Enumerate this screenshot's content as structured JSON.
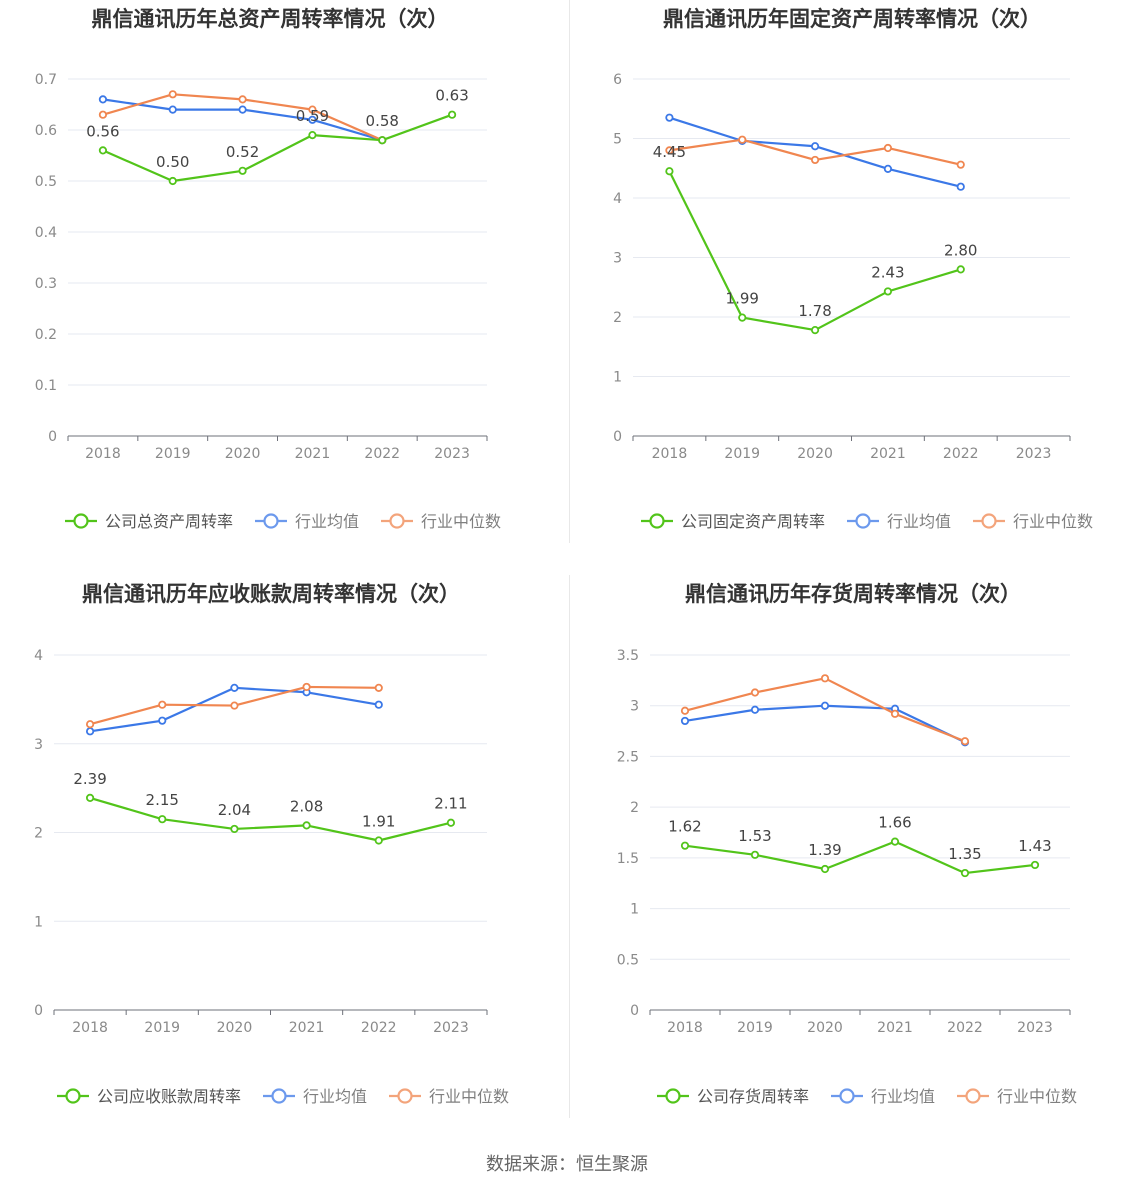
{
  "source_note": "数据来源：恒生聚源",
  "colors": {
    "company": "#52c41a",
    "avg": "#3b78e7",
    "median": "#f08650"
  },
  "chart_data": [
    {
      "type": "line",
      "title": "鼎信通讯历年总资产周转率情况（次）",
      "categories": [
        "2018",
        "2019",
        "2020",
        "2021",
        "2022",
        "2023"
      ],
      "ylim": [
        0,
        0.7
      ],
      "yticks": [
        0,
        0.1,
        0.2,
        0.3,
        0.4,
        0.5,
        0.6,
        0.7
      ],
      "ytick_labels": [
        "0",
        "0.1",
        "0.2",
        "0.3",
        "0.4",
        "0.5",
        "0.6",
        "0.7"
      ],
      "grid": true,
      "legend_position": "bottom",
      "series": [
        {
          "name": "公司总资产周转率",
          "role": "company",
          "values": [
            0.56,
            0.5,
            0.52,
            0.59,
            0.58,
            0.63
          ],
          "labels": [
            "0.56",
            "0.50",
            "0.52",
            "0.59",
            "0.58",
            "0.63"
          ]
        },
        {
          "name": "行业均值",
          "role": "avg",
          "values": [
            0.66,
            0.64,
            0.64,
            0.62,
            0.58,
            null
          ]
        },
        {
          "name": "行业中位数",
          "role": "median",
          "values": [
            0.63,
            0.67,
            0.66,
            0.64,
            0.58,
            null
          ]
        }
      ]
    },
    {
      "type": "line",
      "title": "鼎信通讯历年固定资产周转率情况（次）",
      "categories": [
        "2018",
        "2019",
        "2020",
        "2021",
        "2022",
        "2023"
      ],
      "ylim": [
        0,
        6
      ],
      "yticks": [
        0,
        1,
        2,
        3,
        4,
        5,
        6
      ],
      "ytick_labels": [
        "0",
        "1",
        "2",
        "3",
        "4",
        "5",
        "6"
      ],
      "grid": true,
      "legend_position": "bottom",
      "series": [
        {
          "name": "公司固定资产周转率",
          "role": "company",
          "values": [
            4.45,
            1.99,
            1.78,
            2.43,
            2.8,
            null
          ],
          "labels": [
            "4.45",
            "1.99",
            "1.78",
            "2.43",
            "2.80",
            ""
          ]
        },
        {
          "name": "行业均值",
          "role": "avg",
          "values": [
            5.35,
            4.96,
            4.87,
            4.49,
            4.19,
            null
          ]
        },
        {
          "name": "行业中位数",
          "role": "median",
          "values": [
            4.8,
            4.98,
            4.64,
            4.84,
            4.56,
            null
          ]
        }
      ]
    },
    {
      "type": "line",
      "title": "鼎信通讯历年应收账款周转率情况（次）",
      "categories": [
        "2018",
        "2019",
        "2020",
        "2021",
        "2022",
        "2023"
      ],
      "ylim": [
        0,
        4
      ],
      "yticks": [
        0,
        1,
        2,
        3,
        4
      ],
      "ytick_labels": [
        "0",
        "1",
        "2",
        "3",
        "4"
      ],
      "grid": true,
      "legend_position": "bottom",
      "series": [
        {
          "name": "公司应收账款周转率",
          "role": "company",
          "values": [
            2.39,
            2.15,
            2.04,
            2.08,
            1.91,
            2.11
          ],
          "labels": [
            "2.39",
            "2.15",
            "2.04",
            "2.08",
            "1.91",
            "2.11"
          ]
        },
        {
          "name": "行业均值",
          "role": "avg",
          "values": [
            3.14,
            3.26,
            3.63,
            3.58,
            3.44,
            null
          ]
        },
        {
          "name": "行业中位数",
          "role": "median",
          "values": [
            3.22,
            3.44,
            3.43,
            3.64,
            3.63,
            null
          ]
        }
      ]
    },
    {
      "type": "line",
      "title": "鼎信通讯历年存货周转率情况（次）",
      "categories": [
        "2018",
        "2019",
        "2020",
        "2021",
        "2022",
        "2023"
      ],
      "ylim": [
        0,
        3.5
      ],
      "yticks": [
        0,
        0.5,
        1,
        1.5,
        2,
        2.5,
        3,
        3.5
      ],
      "ytick_labels": [
        "0",
        "0.5",
        "1",
        "1.5",
        "2",
        "2.5",
        "3",
        "3.5"
      ],
      "grid": true,
      "legend_position": "bottom",
      "series": [
        {
          "name": "公司存货周转率",
          "role": "company",
          "values": [
            1.62,
            1.53,
            1.39,
            1.66,
            1.35,
            1.43
          ],
          "labels": [
            "1.62",
            "1.53",
            "1.39",
            "1.66",
            "1.35",
            "1.43"
          ]
        },
        {
          "name": "行业均值",
          "role": "avg",
          "values": [
            2.85,
            2.96,
            3.0,
            2.97,
            2.64,
            null
          ]
        },
        {
          "name": "行业中位数",
          "role": "median",
          "values": [
            2.95,
            3.13,
            3.27,
            2.92,
            2.65,
            null
          ]
        }
      ]
    }
  ]
}
